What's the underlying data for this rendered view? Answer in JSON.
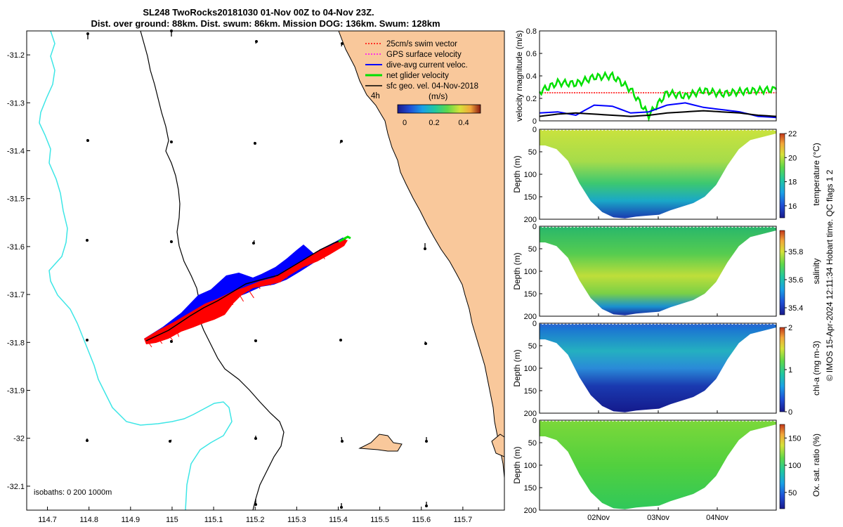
{
  "title_line1": "SL248 TwoRocks20181030 01-Nov 00Z to 04-Nov 23Z.",
  "title_line2": "Dist. over ground: 88km. Dist. swum: 86km. Mission DOG: 136km. Swum: 128km",
  "footer_vertical": "© IMOS 15-Apr-2024 12:11:34 Hobart time. QC flags 1 2",
  "colors": {
    "land": "#f9c89b",
    "isobath_200": "#000000",
    "isobath_1000": "#3de6e6",
    "swim_vector": "#ff0000",
    "gps_velocity": "#ff00ff",
    "dive_avg": "#0000ff",
    "net_glider": "#00e000",
    "sfc_geo": "#000000"
  },
  "chart_data": [
    {
      "type": "map",
      "xlim": [
        114.65,
        115.8
      ],
      "ylim": [
        -32.15,
        -31.15
      ],
      "x_ticks": [
        "114.7",
        "114.8",
        "114.9",
        "115",
        "115.1",
        "115.2",
        "115.3",
        "115.4",
        "115.5",
        "115.6",
        "115.7"
      ],
      "y_ticks": [
        "-31.2",
        "-31.3",
        "-31.4",
        "-31.5",
        "-31.6",
        "-31.7",
        "-31.8",
        "-31.9",
        "-32",
        "-32.1"
      ],
      "legend": [
        {
          "label": "25cm/s swim vector",
          "color": "#ff0000",
          "style": "dotted"
        },
        {
          "label": "GPS surface velocity",
          "color": "#ff00ff",
          "style": "dotted"
        },
        {
          "label": "dive-avg current veloc.",
          "color": "#0000ff",
          "style": "solid"
        },
        {
          "label": "net glider velocity",
          "color": "#00e000",
          "style": "solid"
        },
        {
          "label": "sfc geo. vel. 04-Nov-2018",
          "color": "#000000",
          "style": "solid"
        }
      ],
      "colorbar": {
        "label": "(m/s)",
        "interval_label": "4h",
        "ticks": [
          "0",
          "0.2",
          "0.4"
        ],
        "range": [
          0,
          0.5
        ]
      },
      "isobaths_label": "isobaths: 0   200  1000m",
      "track": {
        "start": [
          114.95,
          -31.795
        ],
        "end": [
          115.41,
          -31.59
        ]
      }
    },
    {
      "type": "line",
      "ylabel": "velocity magnitude (m/s)",
      "ylim": [
        0,
        0.8
      ],
      "y_ticks": [
        "0",
        "0.2",
        "0.4",
        "0.6",
        "0.8"
      ],
      "series": [
        {
          "color": "#ff0000",
          "values": [
            0.25,
            0.25,
            0.25,
            0.25,
            0.25,
            0.25,
            0.25,
            0.25,
            0.25,
            0.25,
            0.25,
            0.25
          ]
        },
        {
          "color": "#00e000",
          "values": [
            0.26,
            0.34,
            0.33,
            0.39,
            0.4,
            0.28,
            0.05,
            0.25,
            0.22,
            0.27,
            0.24,
            0.26,
            0.27,
            0.28
          ]
        },
        {
          "color": "#0000ff",
          "values": [
            0.07,
            0.08,
            0.05,
            0.14,
            0.13,
            0.07,
            0.08,
            0.14,
            0.16,
            0.12,
            0.1,
            0.08,
            0.04,
            0.03
          ]
        },
        {
          "color": "#000000",
          "values": [
            0.04,
            0.06,
            0.07,
            0.06,
            0.05,
            0.04,
            0.05,
            0.07,
            0.08,
            0.09,
            0.08,
            0.07,
            0.05,
            0.04
          ]
        }
      ]
    },
    {
      "type": "heatmap",
      "ylabel": "Depth (m)",
      "clabel": "temperature (°C)",
      "y_ticks": [
        "0",
        "50",
        "100",
        "150",
        "200"
      ],
      "c_ticks": [
        "16",
        "18",
        "20",
        "22"
      ],
      "crange": [
        15,
        22
      ]
    },
    {
      "type": "heatmap",
      "ylabel": "Depth (m)",
      "clabel": "salinity",
      "y_ticks": [
        "0",
        "50",
        "100",
        "150",
        "200"
      ],
      "c_ticks": [
        "35.4",
        "35.6",
        "35.8"
      ],
      "crange": [
        35.35,
        35.95
      ]
    },
    {
      "type": "heatmap",
      "ylabel": "Depth (m)",
      "clabel": "chl-a (mg m-3)",
      "y_ticks": [
        "0",
        "50",
        "100",
        "150",
        "200"
      ],
      "c_ticks": [
        "0",
        "1",
        "2"
      ],
      "crange": [
        0,
        2
      ]
    },
    {
      "type": "heatmap",
      "ylabel": "Depth (m)",
      "clabel": "Ox. sat. ratio (%)",
      "y_ticks": [
        "0",
        "50",
        "100",
        "150",
        "200"
      ],
      "c_ticks": [
        "50",
        "100",
        "150"
      ],
      "crange": [
        20,
        175
      ],
      "x_ticks": [
        "02Nov",
        "03Nov",
        "04Nov"
      ]
    }
  ]
}
